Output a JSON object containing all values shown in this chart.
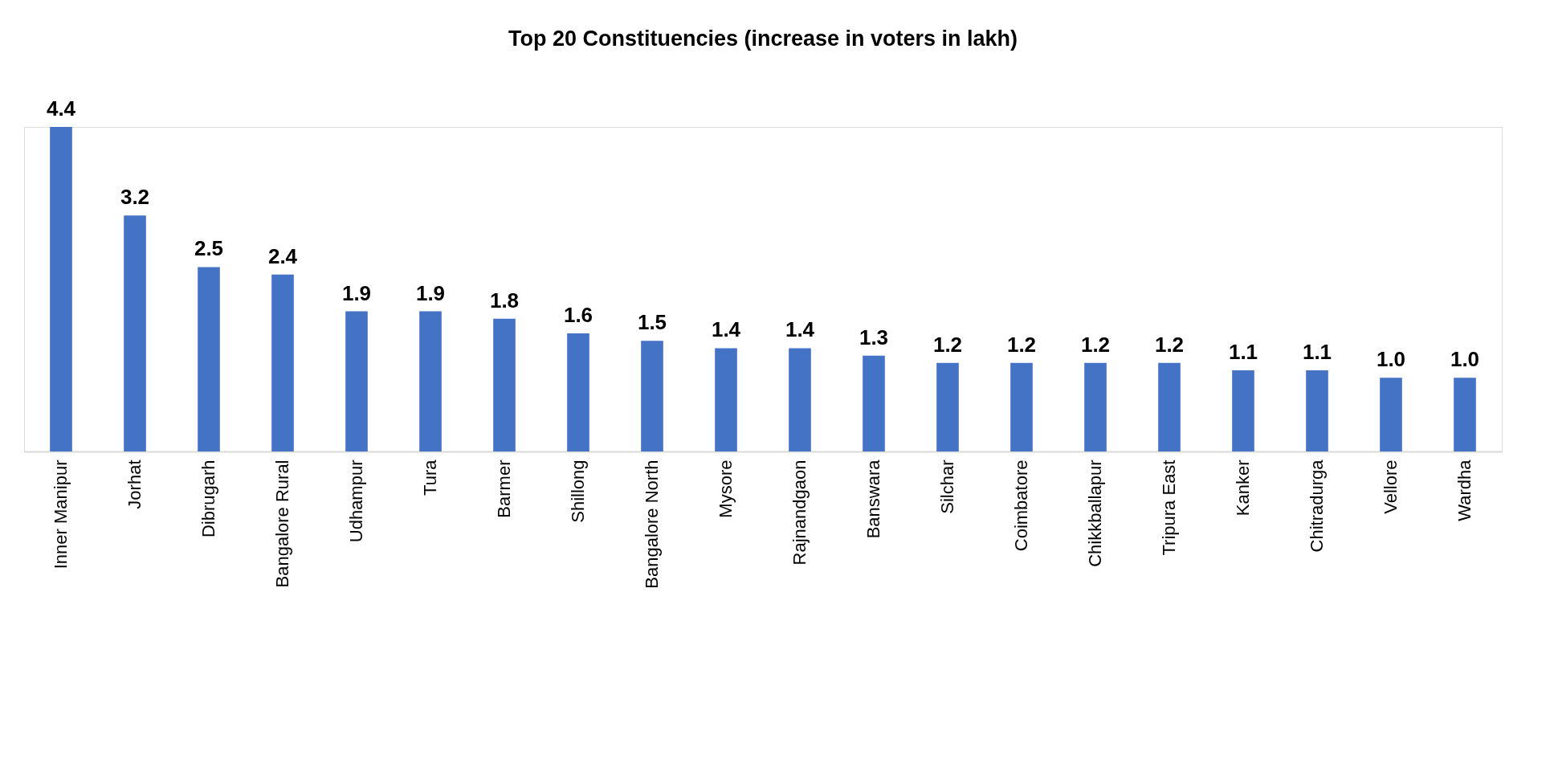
{
  "chart_data": {
    "type": "bar",
    "title": "Top 20 Constituencies (increase in voters in lakh)",
    "categories": [
      "Inner Manipur",
      "Jorhat",
      "Dibrugarh",
      "Bangalore Rural",
      "Udhampur",
      "Tura",
      "Barmer",
      "Shillong",
      "Bangalore North",
      "Mysore",
      "Rajnandgaon",
      "Banswara",
      "Silchar",
      "Coimbatore",
      "Chikkballapur",
      "Tripura East",
      "Kanker",
      "Chitradurga",
      "Vellore",
      "Wardha"
    ],
    "values": [
      4.4,
      3.2,
      2.5,
      2.4,
      1.9,
      1.9,
      1.8,
      1.6,
      1.5,
      1.4,
      1.4,
      1.3,
      1.2,
      1.2,
      1.2,
      1.2,
      1.1,
      1.1,
      1.0,
      1.0
    ],
    "value_labels": [
      "4.4",
      "3.2",
      "2.5",
      "2.4",
      "1.9",
      "1.9",
      "1.8",
      "1.6",
      "1.5",
      "1.4",
      "1.4",
      "1.3",
      "1.2",
      "1.2",
      "1.2",
      "1.2",
      "1.1",
      "1.1",
      "1.0",
      "1.0"
    ],
    "color": "#4472c4"
  }
}
